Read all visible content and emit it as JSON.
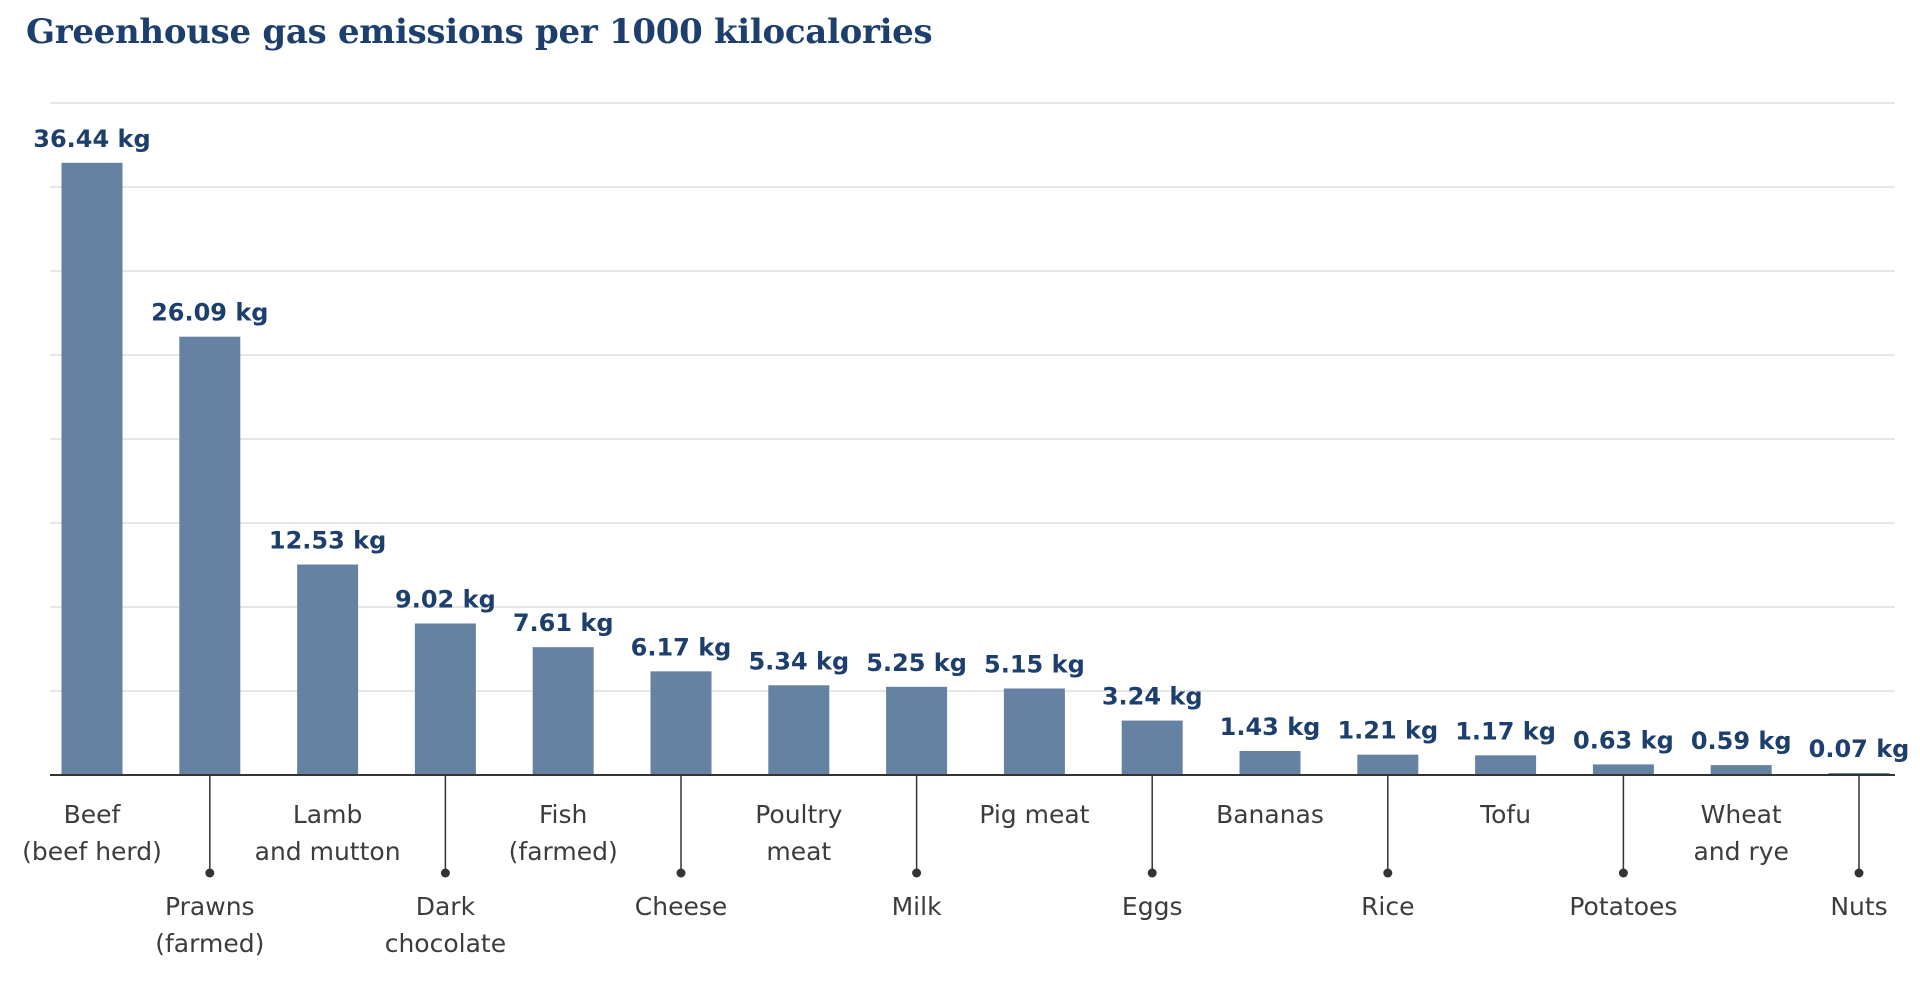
{
  "chart_data": {
    "type": "bar",
    "title": "Greenhouse gas emissions per 1000 kilocalories",
    "xlabel": "",
    "ylabel": "",
    "unit": "kg",
    "ylim": [
      0,
      40
    ],
    "grid": true,
    "bar_color": "#6682a3",
    "grid_color": "#dddddd",
    "axis_color": "#333333",
    "value_label_color": "#1d3f6e",
    "category_label_color": "#3c3c3c",
    "categories": [
      [
        "Beef",
        "(beef herd)"
      ],
      [
        "Prawns",
        "(farmed)"
      ],
      [
        "Lamb",
        "and mutton"
      ],
      [
        "Dark",
        "chocolate"
      ],
      [
        "Fish",
        "(farmed)"
      ],
      [
        "Cheese"
      ],
      [
        "Poultry",
        "meat"
      ],
      [
        "Milk"
      ],
      [
        "Pig meat"
      ],
      [
        "Eggs"
      ],
      [
        "Bananas"
      ],
      [
        "Rice"
      ],
      [
        "Tofu"
      ],
      [
        "Potatoes"
      ],
      [
        "Wheat",
        "and rye"
      ],
      [
        "Nuts"
      ]
    ],
    "values": [
      36.44,
      26.09,
      12.53,
      9.02,
      7.61,
      6.17,
      5.34,
      5.25,
      5.15,
      3.24,
      1.43,
      1.21,
      1.17,
      0.63,
      0.59,
      0.07
    ],
    "value_labels": [
      "36.44 kg",
      "26.09 kg",
      "12.53 kg",
      "9.02 kg",
      "7.61 kg",
      "6.17 kg",
      "5.34 kg",
      "5.25 kg",
      "5.15 kg",
      "3.24 kg",
      "1.43 kg",
      "1.21 kg",
      "1.17 kg",
      "0.63 kg",
      "0.59 kg",
      "0.07 kg"
    ]
  }
}
